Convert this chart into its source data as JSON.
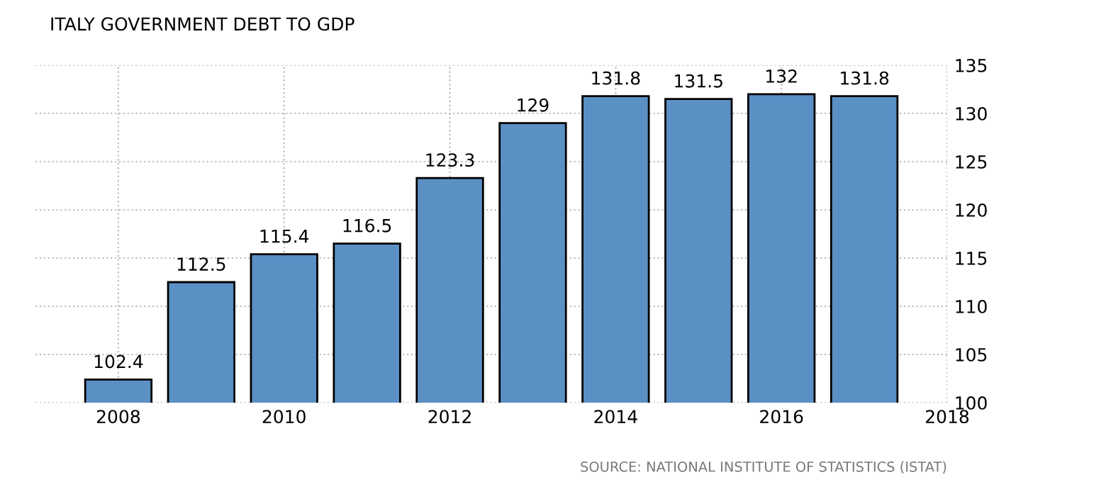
{
  "chart_data": {
    "type": "bar",
    "title": "ITALY GOVERNMENT DEBT TO GDP",
    "x": [
      2008,
      2009,
      2010,
      2011,
      2012,
      2013,
      2014,
      2015,
      2016,
      2017
    ],
    "values": [
      102.4,
      112.5,
      115.4,
      116.5,
      123.3,
      129,
      131.8,
      131.5,
      132,
      131.8
    ],
    "color": "#5b90c4",
    "xlim": [
      2007,
      2018
    ],
    "xticks": [
      2008,
      2010,
      2012,
      2014,
      2016,
      2018
    ],
    "ylim": [
      100,
      135
    ],
    "yticks": [
      100,
      105,
      110,
      115,
      120,
      125,
      130,
      135
    ],
    "grid": true,
    "data_labels": true,
    "annotations": [
      "SOURCE: NATIONAL INSTITUTE OF STATISTICS (ISTAT)"
    ]
  }
}
